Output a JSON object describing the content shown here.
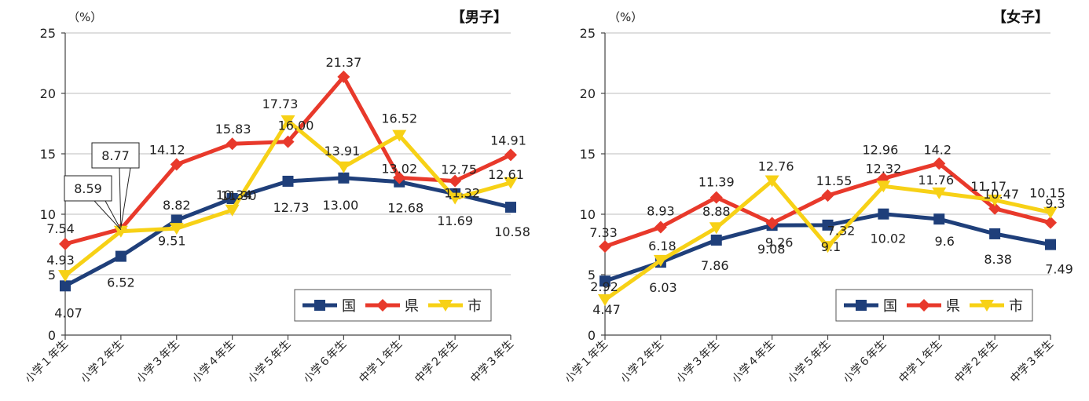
{
  "colors": {
    "kuni": "#1f3f7a",
    "ken": "#e8392b",
    "shi": "#f7d116"
  },
  "chart_data": [
    {
      "type": "line",
      "title": "【男子】",
      "unit_label": "（%）",
      "ylim": [
        0,
        25
      ],
      "yticks": [
        "0",
        "5",
        "10",
        "15",
        "20",
        "25"
      ],
      "categories": [
        "小学１年生",
        "小学２年生",
        "小学３年生",
        "小学４年生",
        "小学５年生",
        "小学６年生",
        "中学１年生",
        "中学２年生",
        "中学３年生"
      ],
      "legend": "bottom-right",
      "series": [
        {
          "name": "国",
          "marker": "square",
          "values": [
            4.07,
            6.52,
            9.51,
            11.3,
            12.73,
            13.0,
            12.68,
            11.69,
            10.58
          ],
          "labels": [
            "4.07",
            "6.52",
            "9.51",
            "11.30",
            "12.73",
            "13.00",
            "12.68",
            "11.69",
            "10.58"
          ]
        },
        {
          "name": "県",
          "marker": "diamond",
          "values": [
            7.54,
            8.77,
            14.12,
            15.83,
            16.0,
            21.37,
            13.02,
            12.75,
            14.91
          ],
          "labels": [
            "7.54",
            "8.77",
            "14.12",
            "15.83",
            "16.00",
            "21.37",
            "13.02",
            "12.75",
            "14.91"
          ]
        },
        {
          "name": "市",
          "marker": "triangle-down",
          "values": [
            4.93,
            8.59,
            8.82,
            10.34,
            17.73,
            13.91,
            16.52,
            11.32,
            12.61
          ],
          "labels": [
            "4.93",
            "8.59",
            "8.82",
            "10.34",
            "17.73",
            "13.91",
            "16.52",
            "11.32",
            "12.61"
          ]
        }
      ]
    },
    {
      "type": "line",
      "title": "【女子】",
      "unit_label": "（%）",
      "ylim": [
        0,
        25
      ],
      "yticks": [
        "0",
        "5",
        "10",
        "15",
        "20",
        "25"
      ],
      "categories": [
        "小学１年生",
        "小学２年生",
        "小学３年生",
        "小学４年生",
        "小学５年生",
        "小学６年生",
        "中学１年生",
        "中学２年生",
        "中学３年生"
      ],
      "legend": "bottom-right",
      "series": [
        {
          "name": "国",
          "marker": "square",
          "values": [
            4.47,
            6.03,
            7.86,
            9.08,
            9.1,
            10.02,
            9.6,
            8.38,
            7.49
          ],
          "labels": [
            "4.47",
            "6.03",
            "7.86",
            "9.08",
            "9.1",
            "10.02",
            "9.6",
            "8.38",
            "7.49"
          ]
        },
        {
          "name": "県",
          "marker": "diamond",
          "values": [
            7.33,
            8.93,
            11.39,
            9.26,
            11.55,
            12.96,
            14.2,
            10.47,
            9.3
          ],
          "labels": [
            "7.33",
            "8.93",
            "11.39",
            "9.26",
            "11.55",
            "12.96",
            "14.2",
            "10.47",
            "9.3"
          ]
        },
        {
          "name": "市",
          "marker": "triangle-down",
          "values": [
            2.92,
            6.18,
            8.88,
            12.76,
            7.32,
            12.32,
            11.76,
            11.17,
            10.15
          ],
          "labels": [
            "2.92",
            "6.18",
            "8.88",
            "12.76",
            "7.32",
            "12.32",
            "11.76",
            "11.17",
            "10.15"
          ]
        }
      ]
    }
  ]
}
